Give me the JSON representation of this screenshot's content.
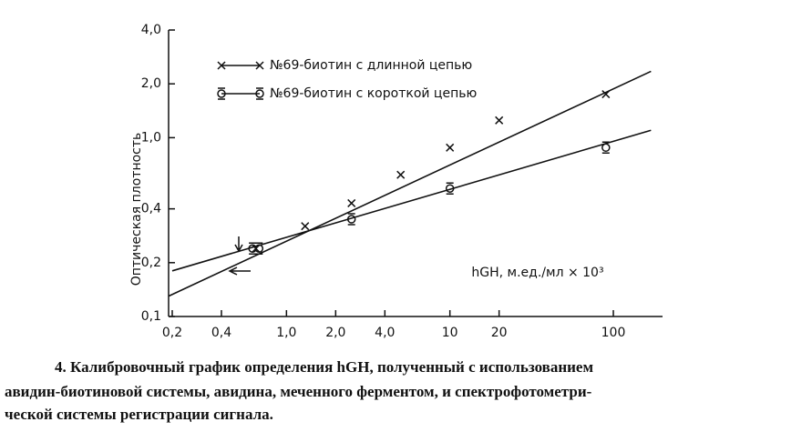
{
  "chart_data": {
    "type": "scatter",
    "y_label": "Оптическая плотность",
    "x_label": "hGH, м.ед./мл × 10³",
    "log_x": true,
    "log_y": true,
    "xlim": [
      0.19,
      200
    ],
    "ylim": [
      0.1,
      4.0
    ],
    "xticks": [
      {
        "value": 0.2,
        "label": "0,2"
      },
      {
        "value": 0.4,
        "label": "0,4"
      },
      {
        "value": 1.0,
        "label": "1,0"
      },
      {
        "value": 2.0,
        "label": "2,0"
      },
      {
        "value": 4.0,
        "label": "4,0"
      },
      10,
      20,
      100
    ],
    "yticks": [
      {
        "value": 0.1,
        "label": "0,1"
      },
      {
        "value": 0.2,
        "label": "0,2"
      },
      {
        "value": 0.4,
        "label": "0,4"
      },
      {
        "value": 1.0,
        "label": "1,0"
      },
      {
        "value": 2.0,
        "label": "2,0"
      },
      {
        "value": 4.0,
        "label": "4,0"
      }
    ],
    "series": [
      {
        "name": "№69-биотин с длинной цепью",
        "marker": "x",
        "color": "#111111",
        "x": [
          0.65,
          1.3,
          2.5,
          5,
          10,
          20,
          90
        ],
        "values": [
          0.24,
          0.32,
          0.43,
          0.62,
          0.88,
          1.25,
          1.75
        ],
        "fit_x": [
          0.19,
          170
        ],
        "fit_y": [
          0.13,
          2.35
        ]
      },
      {
        "name": "№69-биотин с короткой цепью",
        "marker": "circle",
        "color": "#111111",
        "x": [
          0.62,
          0.68,
          2.5,
          10,
          90
        ],
        "values": [
          0.24,
          0.24,
          0.35,
          0.52,
          0.88
        ],
        "fit_x": [
          0.2,
          170
        ],
        "fit_y": [
          0.18,
          1.1
        ]
      }
    ],
    "caption": [
      "4. Калибровочный график определения hGH, полученный с использованием",
      "авидин-биотиновой системы, авидина, меченного ферментом, и спектрофотометри-",
      "ческой системы регистрации сигнала."
    ]
  }
}
